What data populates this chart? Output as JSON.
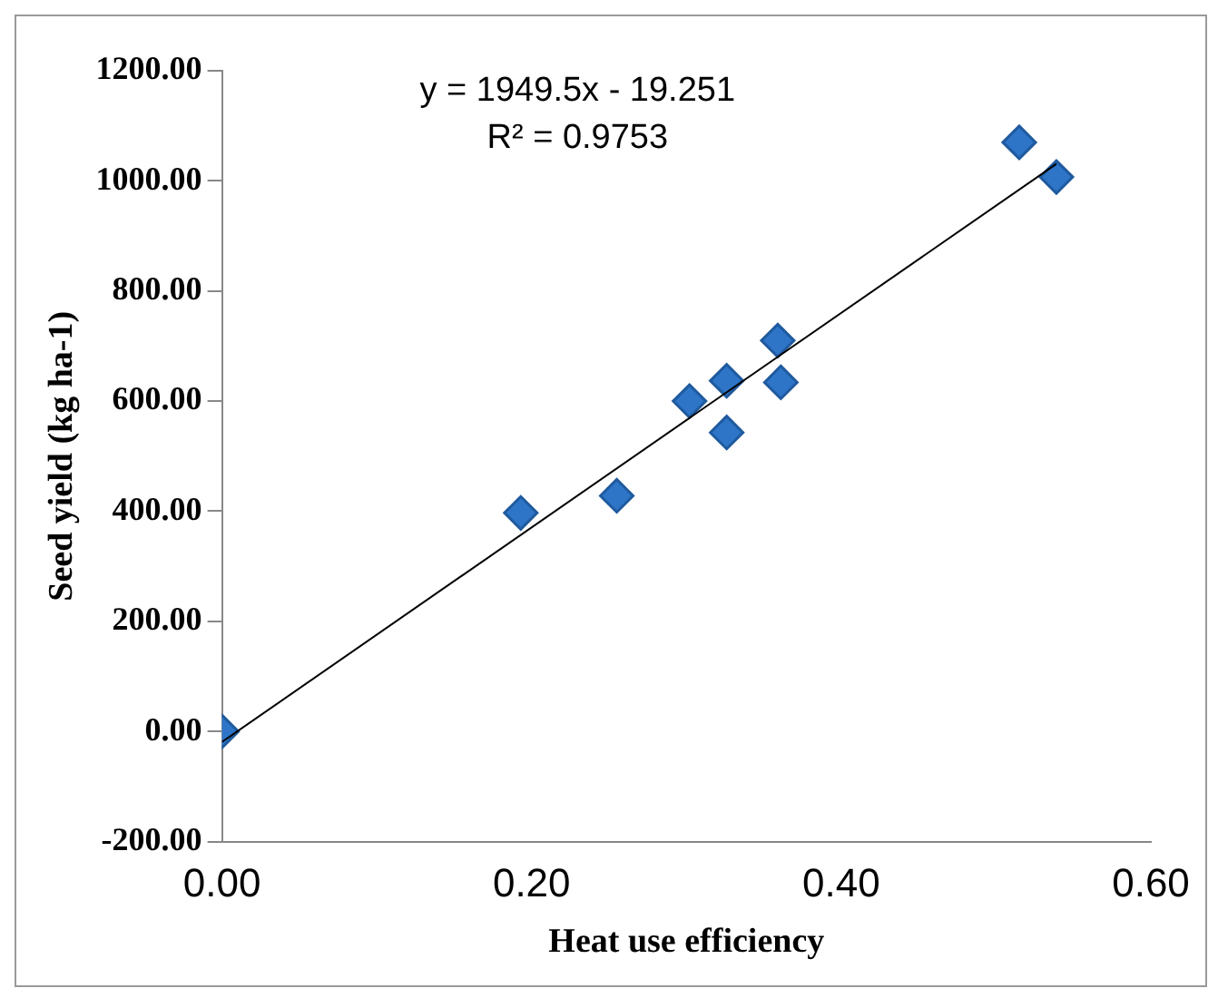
{
  "chart_data": {
    "type": "scatter",
    "xlabel": "Heat use efficiency",
    "ylabel": "Seed yield (kg ha-1)",
    "annotations": [
      "y = 1949.5x - 19.251",
      "R² = 0.9753"
    ],
    "series": [
      {
        "marker": "diamond",
        "color": "#2e75c8",
        "x": [
          0,
          0.193,
          0.255,
          0.302,
          0.326,
          0.326,
          0.359,
          0.361,
          0.515,
          0.539
        ],
        "values": [
          0,
          397,
          428,
          600,
          637,
          543,
          710,
          634,
          1070,
          1007
        ]
      },
      {
        "type": "line",
        "color": "#000000",
        "x": [
          0,
          0.539
        ],
        "values": [
          -19,
          1031
        ]
      }
    ],
    "xlim": [
      0,
      0.6
    ],
    "xticks": [
      {
        "value": 0,
        "label": "0.00"
      },
      {
        "value": 0.2,
        "label": "0.20"
      },
      {
        "value": 0.4,
        "label": "0.40"
      },
      {
        "value": 0.6,
        "label": "0.60"
      }
    ],
    "ylim": [
      -200,
      1200
    ],
    "yticks": [
      {
        "value": -200,
        "label": "-200.00"
      },
      {
        "value": 0,
        "label": "0.00"
      },
      {
        "value": 200,
        "label": "200.00"
      },
      {
        "value": 400,
        "label": "400.00"
      },
      {
        "value": 600,
        "label": "600.00"
      },
      {
        "value": 800,
        "label": "800.00"
      },
      {
        "value": 1000,
        "label": "1000.00"
      },
      {
        "value": 1200,
        "label": "1200.00"
      }
    ],
    "grid": false,
    "legend": false
  }
}
